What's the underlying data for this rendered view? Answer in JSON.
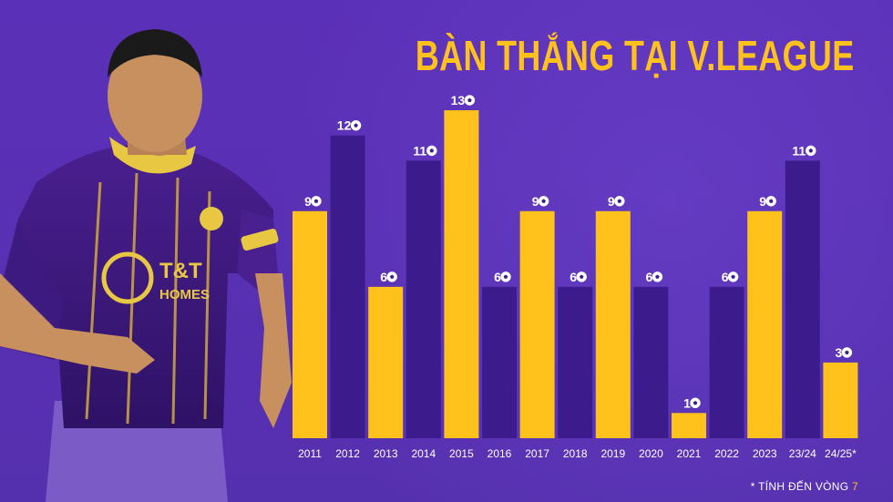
{
  "title": "BÀN THẮNG TẠI V.LEAGUE",
  "footnote": {
    "prefix": "* TÍNH ĐẾN VÒNG ",
    "round": "7"
  },
  "colors": {
    "background": "#5a2fb6",
    "bar_gold": "#ffc21c",
    "bar_dark": "#3c1c8c",
    "text": "#ffffff"
  },
  "chart_data": {
    "type": "bar",
    "categories": [
      "2011",
      "2012",
      "2013",
      "2014",
      "2015",
      "2016",
      "2017",
      "2018",
      "2019",
      "2020",
      "2021",
      "2022",
      "2023",
      "23/24",
      "24/25*"
    ],
    "values": [
      9,
      12,
      6,
      11,
      13,
      6,
      9,
      6,
      9,
      6,
      1,
      6,
      9,
      11,
      3
    ],
    "bar_colors": [
      "gold",
      "dark",
      "gold",
      "dark",
      "gold",
      "dark",
      "gold",
      "dark",
      "gold",
      "dark",
      "gold",
      "dark",
      "gold",
      "dark",
      "gold"
    ],
    "value_icon": "soccer-ball-icon",
    "ylim": [
      0,
      13
    ],
    "grid": false
  }
}
